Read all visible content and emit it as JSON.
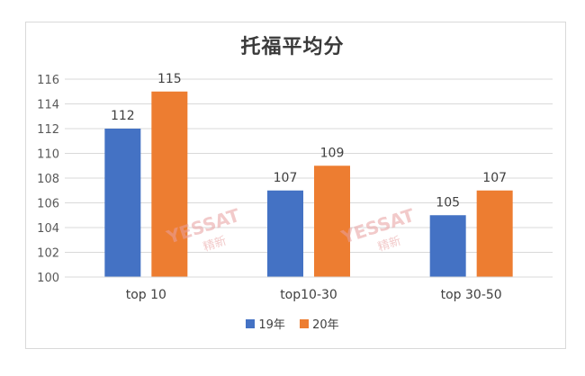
{
  "chart_data": {
    "type": "bar",
    "title": "托福平均分",
    "categories": [
      "top 10",
      "top10-30",
      "top 30-50"
    ],
    "series": [
      {
        "name": "19年",
        "values": [
          112,
          107,
          105
        ],
        "color": "#4472c4"
      },
      {
        "name": "20年",
        "values": [
          115,
          109,
          107
        ],
        "color": "#ed7d31"
      }
    ],
    "ylim": [
      100,
      116
    ],
    "yticks": [
      100,
      102,
      104,
      106,
      108,
      110,
      112,
      114,
      116
    ],
    "grid": true,
    "legend_position": "bottom",
    "watermark": "YESSAT 精新"
  }
}
